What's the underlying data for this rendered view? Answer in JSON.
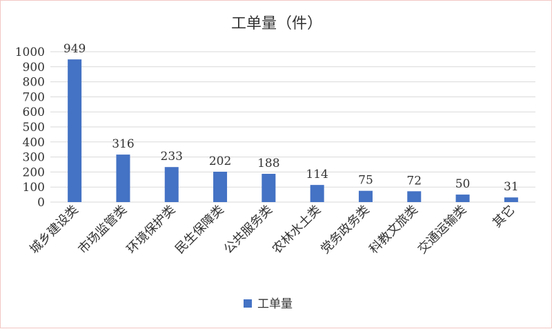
{
  "chart_data": {
    "type": "bar",
    "title": "工单量（件）",
    "categories": [
      "城乡建设类",
      "市场监管类",
      "环境保护类",
      "民生保障类",
      "公共服务类",
      "农林水土类",
      "党务政务类",
      "科教文旅类",
      "交通运输类",
      "其它"
    ],
    "series": [
      {
        "name": "工单量",
        "values": [
          949,
          316,
          233,
          202,
          188,
          114,
          75,
          72,
          50,
          31
        ]
      }
    ],
    "ylim": [
      0,
      1000
    ],
    "yticks": [
      "0",
      "100",
      "200",
      "300",
      "400",
      "500",
      "600",
      "700",
      "800",
      "900",
      "1000"
    ],
    "grid": true,
    "legend": "bottom",
    "bar_color": "#4472c4"
  }
}
